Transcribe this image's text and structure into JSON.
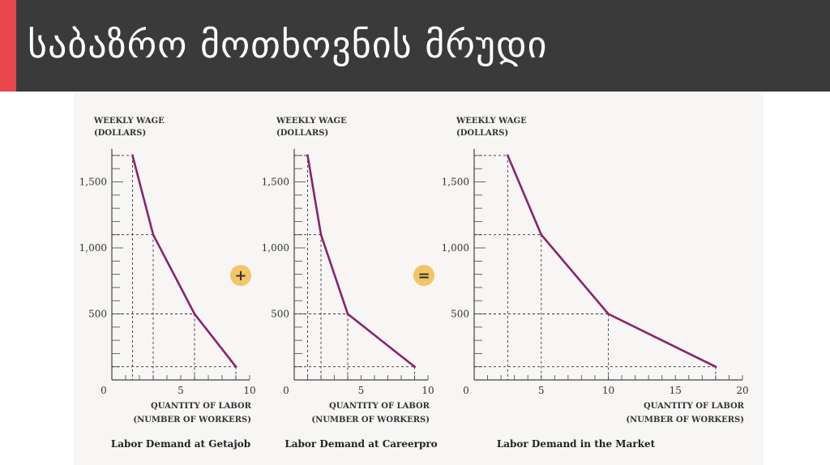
{
  "slide": {
    "title": "საბაზრო მოთხოვნის მრუდი",
    "accent_color": "#e8474c",
    "header_color": "#3a3a3a"
  },
  "operators": {
    "plus": "+",
    "equals": "="
  },
  "line_color": "#8b2269",
  "operator_color": "#f2c566",
  "chart_data": [
    {
      "type": "line",
      "title": "Labor Demand at Getajob",
      "ylabel_line1": "WEEKLY WAGE",
      "ylabel_line2": "(DOLLARS)",
      "xlabel_line1": "QUANTITY OF LABOR",
      "xlabel_line2": "(NUMBER OF WORKERS)",
      "xlim": [
        0,
        10
      ],
      "ylim": [
        0,
        2000
      ],
      "xticks": [
        0,
        5,
        10
      ],
      "yticks": [
        500,
        1000,
        1500
      ],
      "ytick_labels": [
        "500",
        "1,000",
        "1,500"
      ],
      "x": [
        1.5,
        3,
        6,
        9
      ],
      "y": [
        1700,
        1100,
        500,
        100
      ]
    },
    {
      "type": "line",
      "title": "Labor Demand at Careerpro",
      "ylabel_line1": "WEEKLY WAGE",
      "ylabel_line2": "(DOLLARS)",
      "xlabel_line1": "QUANTITY OF LABOR",
      "xlabel_line2": "(NUMBER OF WORKERS)",
      "xlim": [
        0,
        10
      ],
      "ylim": [
        0,
        2000
      ],
      "xticks": [
        0,
        5,
        10
      ],
      "yticks": [
        500,
        1000,
        1500
      ],
      "ytick_labels": [
        "500",
        "1,000",
        "1,500"
      ],
      "x": [
        1,
        2,
        4,
        9
      ],
      "y": [
        1700,
        1100,
        500,
        100
      ]
    },
    {
      "type": "line",
      "title": "Labor Demand in the Market",
      "ylabel_line1": "WEEKLY WAGE",
      "ylabel_line2": "(DOLLARS)",
      "xlabel_line1": "QUANTITY OF LABOR",
      "xlabel_line2": "(NUMBER OF WORKERS)",
      "xlim": [
        0,
        20
      ],
      "ylim": [
        0,
        2000
      ],
      "xticks": [
        0,
        5,
        10,
        15,
        20
      ],
      "yticks": [
        500,
        1000,
        1500
      ],
      "ytick_labels": [
        "500",
        "1,000",
        "1,500"
      ],
      "x": [
        2.5,
        5,
        10,
        18
      ],
      "y": [
        1700,
        1100,
        500,
        100
      ]
    }
  ]
}
